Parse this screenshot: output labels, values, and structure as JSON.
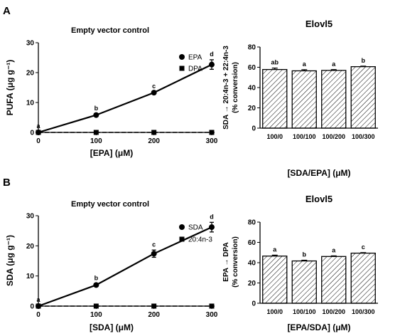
{
  "panels": [
    {
      "letter": "A"
    },
    {
      "letter": "B"
    }
  ],
  "chart_data": [
    {
      "type": "line",
      "title": "Empty vector control",
      "xlabel": "[EPA] (μM)",
      "ylabel": "PUFA (μg g⁻¹)",
      "x": [
        0,
        100,
        200,
        300
      ],
      "xlim": [
        0,
        300
      ],
      "ylim": [
        0,
        30
      ],
      "xticks": [
        "0",
        "100",
        "200",
        "300"
      ],
      "yticks": [
        "0",
        "10",
        "20",
        "30"
      ],
      "legend": "right",
      "series": [
        {
          "name": "EPA",
          "values": [
            0,
            5.8,
            13.3,
            22.7
          ],
          "errors": [
            0.2,
            0.4,
            0.3,
            1.6
          ],
          "marker": "circle",
          "dashed": false,
          "labels": [
            "a",
            "b",
            "c",
            "d"
          ]
        },
        {
          "name": "DPA",
          "values": [
            0,
            0,
            0,
            0
          ],
          "errors": [
            0,
            0,
            0,
            0
          ],
          "marker": "square",
          "dashed": true,
          "labels": []
        }
      ]
    },
    {
      "type": "bar",
      "title": "Elovl5",
      "xlabel": "[SDA/EPA] (μM)",
      "ylabel": "SDA → 20:4n-3 + 22:4n-3",
      "ylabel2": "(% conversion)",
      "categories": [
        "100/0",
        "100/100",
        "100/200",
        "100/300"
      ],
      "values": [
        57.8,
        56.5,
        56.9,
        60.6
      ],
      "errors": [
        1.4,
        1.1,
        0.8,
        0.5
      ],
      "labels": [
        "ab",
        "a",
        "a",
        "b"
      ],
      "ylim": [
        0,
        80
      ],
      "yticks": [
        "0",
        "20",
        "40",
        "60",
        "80"
      ]
    },
    {
      "type": "line",
      "title": "Empty vector control",
      "xlabel": "[SDA] (μM)",
      "ylabel": "SDA (μg g⁻¹)",
      "x": [
        0,
        100,
        200,
        300
      ],
      "xlim": [
        0,
        300
      ],
      "ylim": [
        0,
        30
      ],
      "xticks": [
        "0",
        "100",
        "200",
        "300"
      ],
      "yticks": [
        "0",
        "10",
        "20",
        "30"
      ],
      "legend": "right",
      "series": [
        {
          "name": "SDA",
          "values": [
            0,
            7.0,
            17.4,
            26.2
          ],
          "errors": [
            0.2,
            0.4,
            1.2,
            1.6
          ],
          "marker": "circle",
          "dashed": false,
          "labels": [
            "a",
            "b",
            "c",
            "d"
          ]
        },
        {
          "name": "20:4n-3",
          "values": [
            0,
            0,
            0,
            0
          ],
          "errors": [
            0,
            0,
            0,
            0
          ],
          "marker": "square",
          "dashed": true,
          "labels": []
        }
      ]
    },
    {
      "type": "bar",
      "title": "Elovl5",
      "xlabel": "[EPA/SDA] (μM)",
      "ylabel": "EPA → DPA",
      "ylabel2": "(% conversion)",
      "categories": [
        "100/0",
        "100/100",
        "100/200",
        "100/300"
      ],
      "values": [
        46.5,
        41.7,
        46.1,
        49.4
      ],
      "errors": [
        0.9,
        0.7,
        0.6,
        0.5
      ],
      "labels": [
        "a",
        "b",
        "a",
        "c"
      ],
      "ylim": [
        0,
        80
      ],
      "yticks": [
        "0",
        "20",
        "40",
        "60",
        "80"
      ]
    }
  ]
}
